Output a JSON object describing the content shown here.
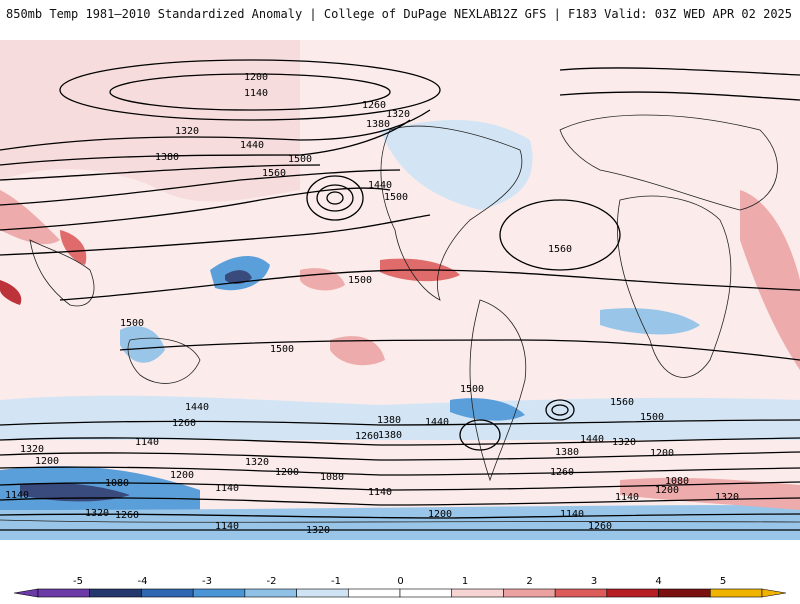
{
  "header": {
    "title_left": "850mb Temp 1981–2010 Standardized Anomaly | College of DuPage NEXLAB",
    "title_right": "12Z GFS | F183 Valid: 03Z WED APR 02 2025"
  },
  "map": {
    "field": "850mb temperature standardized anomaly",
    "contours": "geopotential height",
    "projection": "global cylindrical",
    "contour_labels": [
      "1200",
      "1140",
      "1260",
      "1320",
      "1380",
      "1440",
      "1500",
      "1560",
      "1320",
      "1380",
      "1440",
      "1500",
      "1560",
      "1500",
      "1500",
      "1500",
      "1440",
      "1380",
      "1320",
      "1260",
      "1200",
      "1140",
      "1080",
      "1140",
      "1200",
      "1260",
      "1320",
      "1380",
      "1440",
      "1500",
      "1560",
      "1500",
      "1440",
      "1380",
      "1320",
      "1260",
      "1200",
      "1140",
      "1080",
      "1320",
      "1200",
      "1140",
      "1080",
      "1140",
      "1200",
      "1260",
      "1320",
      "1140",
      "1320",
      "1200",
      "1140",
      "1260"
    ]
  },
  "colorbar": {
    "ticks": [
      "-5",
      "-4",
      "-3",
      "-2",
      "-1",
      "0",
      "1",
      "2",
      "3",
      "4",
      "5"
    ],
    "colors": [
      "#6c3ba8",
      "#24386e",
      "#2f68b2",
      "#4a95d6",
      "#8fc0e6",
      "#cfe3f4",
      "#ffffff",
      "#ffffff",
      "#f7d4d4",
      "#eda2a2",
      "#dc5c5c",
      "#b51f24",
      "#7a1010",
      "#f0b400"
    ]
  }
}
